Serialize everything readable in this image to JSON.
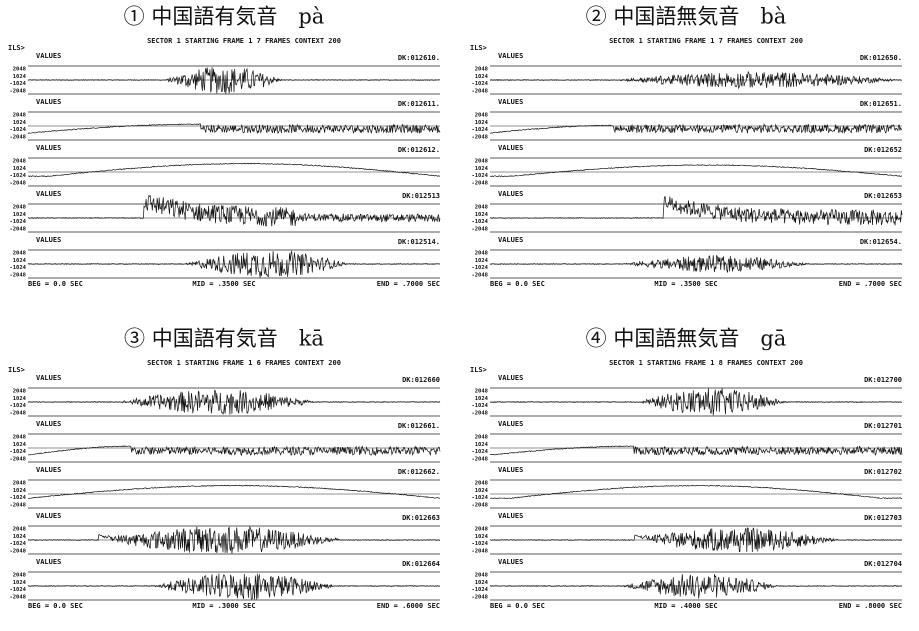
{
  "amplitude_labels": [
    "2048",
    "1024",
    "-1024",
    "-2048"
  ],
  "panels": [
    {
      "title": "① 中国語有気音　pà",
      "header": "SECTOR 1  STARTING FRAME 1  7 FRAMES  CONTEXT 200",
      "prompt": "ILS>",
      "channels": [
        {
          "label": "VALUES",
          "id": "DK:012610."
        },
        {
          "label": "VALUES",
          "id": "DK:012611."
        },
        {
          "label": "VALUES",
          "id": "DK:012612."
        },
        {
          "label": "VALUES",
          "id": "DK:012513"
        },
        {
          "label": "VALUES",
          "id": "DK:012514."
        }
      ],
      "footer": {
        "beg": "BEG = 0.0 SEC",
        "mid": "MID = .3500 SEC",
        "end": "END = .7000 SEC"
      }
    },
    {
      "title": "② 中国語無気音　bà",
      "header": "SECTOR 1  STARTING FRAME 1  7 FRAMES  CONTEXT 200",
      "prompt": "ILS>",
      "channels": [
        {
          "label": "VALUES",
          "id": "DK:012650."
        },
        {
          "label": "VALUES",
          "id": "DK:012651."
        },
        {
          "label": "VALUES",
          "id": "DK:012652"
        },
        {
          "label": "VALUES",
          "id": "DK:012653"
        },
        {
          "label": "VALUES",
          "id": "DK:012654."
        }
      ],
      "footer": {
        "beg": "BEG = 0.0 SEC",
        "mid": "MID = .3500 SEC",
        "end": "END = .7000 SEC"
      }
    },
    {
      "title": "③ 中国語有気音　kā",
      "header": "SECTOR 1  STARTING FRAME 1  6 FRAMES  CONTEXT 200",
      "prompt": "ILS>",
      "channels": [
        {
          "label": "VALUES",
          "id": "DK:012660"
        },
        {
          "label": "VALUES",
          "id": "DK:012661."
        },
        {
          "label": "VALUES",
          "id": "DK:012662."
        },
        {
          "label": "VALUES",
          "id": "DK:012663"
        },
        {
          "label": "VALUES",
          "id": "DK:012664"
        }
      ],
      "footer": {
        "beg": "BEG = 0.0 SEC",
        "mid": "MID = .3000 SEC",
        "end": "END = .6000 SEC"
      }
    },
    {
      "title": "④ 中国語無気音　gā",
      "header": "SECTOR 1  STARTING FRAME 1  8 FRAMES  CONTEXT 200",
      "prompt": "ILS>",
      "channels": [
        {
          "label": "VALUES",
          "id": "DK:012700"
        },
        {
          "label": "VALUES",
          "id": "DK:012701"
        },
        {
          "label": "VALUES",
          "id": "DK:012702"
        },
        {
          "label": "VALUES",
          "id": "DK:012703"
        },
        {
          "label": "VALUES",
          "id": "DK:012704"
        }
      ],
      "footer": {
        "beg": "BEG = 0.0 SEC",
        "mid": "MID = .4000 SEC",
        "end": "END = .8000 SEC"
      }
    }
  ]
}
